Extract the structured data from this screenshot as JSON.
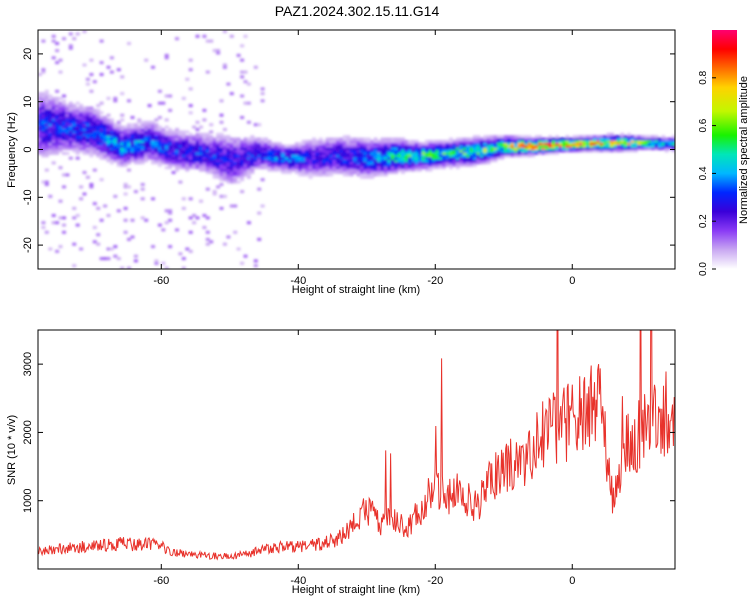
{
  "page_title": "PAZ1.2024.302.15.11.G14",
  "colors": {
    "snr_line": "#e8322b",
    "spectrum_colormap": [
      "#ffffff",
      "#c9a8f2",
      "#8a3bf5",
      "#3a00d9",
      "#0026ff",
      "#00b7ff",
      "#00e6b8",
      "#19f200",
      "#c2f700",
      "#ffd200",
      "#ff6a00",
      "#ff0000",
      "#ff0070"
    ]
  },
  "chart_data": [
    {
      "type": "heatmap",
      "title": "PAZ1.2024.302.15.11.G14",
      "xlabel": "Height of straight line (km)",
      "ylabel": "Frequency (Hz)",
      "colorbar_label": "Normalized spectral amplitude",
      "xlim": [
        -78,
        15
      ],
      "ylim": [
        -25,
        25
      ],
      "xticks": [
        -60,
        -40,
        -20,
        0
      ],
      "yticks": [
        -20,
        -10,
        0,
        10,
        20
      ],
      "colorbar_range": [
        0,
        1
      ],
      "colorbar_ticks": [
        0.0,
        0.2,
        0.4,
        0.6,
        0.8
      ],
      "grid": false,
      "ridge": {
        "x": [
          -77,
          -74,
          -70,
          -66,
          -62,
          -58,
          -54,
          -50,
          -46,
          -42,
          -38,
          -34,
          -30,
          -26,
          -22,
          -18,
          -14,
          -10,
          -6,
          -2,
          2,
          6,
          10,
          14
        ],
        "frequency": [
          5.0,
          4.5,
          3.5,
          0.5,
          1.5,
          -0.5,
          -1.0,
          -2.5,
          -1.0,
          -2.0,
          -2.0,
          -1.5,
          -2.0,
          -1.5,
          -1.5,
          -1.0,
          -0.5,
          0.5,
          0.5,
          0.8,
          1.0,
          1.2,
          1.2,
          1.0
        ],
        "amplitude": [
          0.35,
          0.35,
          0.4,
          0.45,
          0.4,
          0.35,
          0.35,
          0.3,
          0.35,
          0.45,
          0.3,
          0.35,
          0.4,
          0.55,
          0.6,
          0.55,
          0.6,
          0.7,
          0.95,
          0.98,
          0.92,
          0.8,
          0.7,
          0.5
        ],
        "spread_hz": [
          5,
          4,
          3.5,
          3,
          3,
          3,
          3,
          4,
          2.5,
          2,
          3,
          3,
          3,
          2.5,
          2,
          2,
          2,
          1.5,
          1.2,
          1.0,
          1.0,
          1.2,
          1.0,
          1.0
        ]
      }
    },
    {
      "type": "line",
      "xlabel": "Height of straight line (km)",
      "ylabel": "SNR (10 * v/v)",
      "xlim": [
        -78,
        15
      ],
      "ylim": [
        0,
        3500
      ],
      "xticks": [
        -60,
        -40,
        -20,
        0
      ],
      "yticks": [
        1000,
        2000,
        3000
      ],
      "grid": false,
      "series": [
        {
          "x": [
            -78,
            -76,
            -74,
            -72,
            -70,
            -68,
            -66,
            -64,
            -62,
            -60,
            -58,
            -56,
            -54,
            -52,
            -50,
            -48,
            -46,
            -44,
            -42,
            -40,
            -38,
            -36,
            -34,
            -32,
            -30,
            -28,
            -26,
            -24,
            -22,
            -20,
            -18,
            -16,
            -14,
            -12,
            -10,
            -8,
            -6,
            -4,
            -2,
            0,
            2,
            4,
            6,
            8,
            10,
            12,
            14,
            15
          ],
          "values": [
            250,
            280,
            300,
            320,
            330,
            350,
            380,
            350,
            360,
            330,
            250,
            220,
            200,
            190,
            180,
            210,
            260,
            300,
            330,
            330,
            350,
            380,
            450,
            650,
            900,
            650,
            750,
            600,
            900,
            1200,
            1100,
            1100,
            900,
            1300,
            1500,
            1500,
            1800,
            2000,
            2100,
            2200,
            2350,
            2400,
            950,
            1800,
            2000,
            2200,
            2300,
            2000
          ]
        }
      ]
    }
  ]
}
